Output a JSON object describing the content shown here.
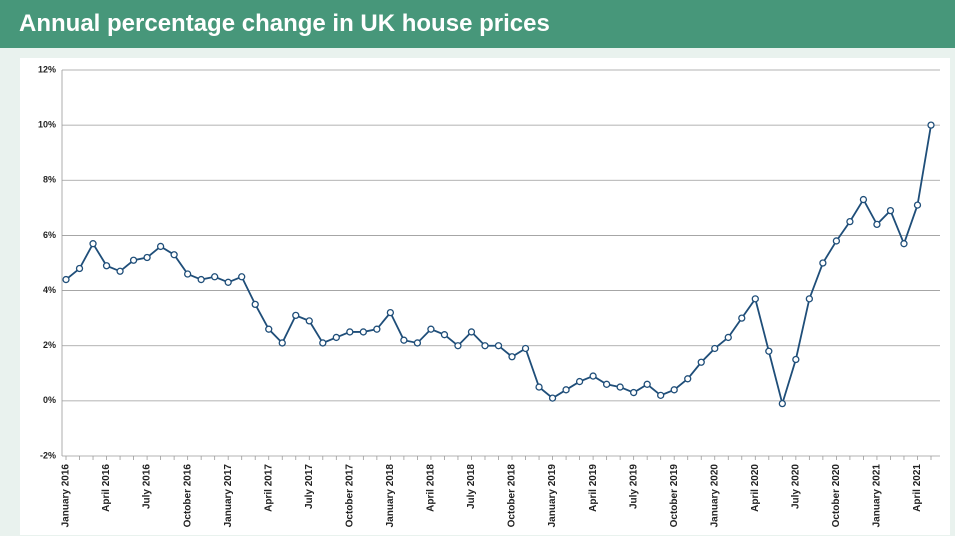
{
  "chart_data": {
    "type": "line",
    "title": "Annual percentage change in UK house prices",
    "categories": [
      "January 2016",
      null,
      null,
      "April 2016",
      null,
      null,
      "July 2016",
      null,
      null,
      "October 2016",
      null,
      null,
      "January 2017",
      null,
      null,
      "April 2017",
      null,
      null,
      "July 2017",
      null,
      null,
      "October 2017",
      null,
      null,
      "January 2018",
      null,
      null,
      "April 2018",
      null,
      null,
      "July 2018",
      null,
      null,
      "October 2018",
      null,
      null,
      "January 2019",
      null,
      null,
      "April 2019",
      null,
      null,
      "July 2019",
      null,
      null,
      "October 2019",
      null,
      null,
      "January 2020",
      null,
      null,
      "April 2020",
      null,
      null,
      "July 2020",
      null,
      null,
      "October 2020",
      null,
      null,
      "January 2021",
      null,
      null,
      "April 2021",
      null
    ],
    "series": [
      {
        "color": "#1f4e79",
        "values": [
          4.4,
          4.8,
          5.7,
          4.9,
          4.7,
          5.1,
          5.2,
          5.6,
          5.3,
          4.6,
          4.4,
          4.5,
          4.3,
          4.5,
          3.5,
          2.6,
          2.1,
          3.1,
          2.9,
          2.1,
          2.3,
          2.5,
          2.5,
          2.6,
          3.2,
          2.2,
          2.1,
          2.6,
          2.4,
          2.0,
          2.5,
          2.0,
          2.0,
          1.6,
          1.9,
          0.5,
          0.1,
          0.4,
          0.7,
          0.9,
          0.6,
          0.5,
          0.3,
          0.6,
          0.2,
          0.4,
          0.8,
          1.4,
          1.9,
          2.3,
          3.0,
          3.7,
          1.8,
          -0.1,
          1.5,
          3.7,
          5.0,
          5.8,
          6.5,
          7.3,
          6.4,
          6.9,
          5.7,
          7.1,
          10.0
        ]
      }
    ],
    "ylim": [
      -2,
      12
    ],
    "yticks": [
      {
        "value": -2,
        "label": "-2%"
      },
      {
        "value": 0,
        "label": "0%"
      },
      {
        "value": 2,
        "label": "2%"
      },
      {
        "value": 4,
        "label": "4%"
      },
      {
        "value": 6,
        "label": "6%"
      },
      {
        "value": 8,
        "label": "8%"
      },
      {
        "value": 10,
        "label": "10%"
      },
      {
        "value": 12,
        "label": "12%"
      }
    ],
    "grid": true
  }
}
